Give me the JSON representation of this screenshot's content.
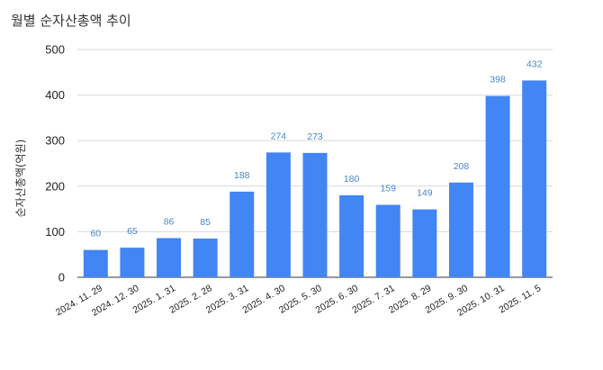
{
  "chart_data": {
    "type": "bar",
    "title": "월별 순자산총액 추이",
    "xlabel": "",
    "ylabel": "순자산총액(억원)",
    "categories": [
      "2024. 11. 29",
      "2024. 12. 30",
      "2025. 1. 31",
      "2025. 2. 28",
      "2025. 3. 31",
      "2025. 4. 30",
      "2025. 5. 30",
      "2025. 6. 30",
      "2025. 7. 31",
      "2025. 8. 29",
      "2025. 9. 30",
      "2025. 10. 31",
      "2025. 11. 5"
    ],
    "values": [
      60,
      65,
      86,
      85,
      188,
      274,
      273,
      180,
      159,
      149,
      208,
      398,
      432
    ],
    "ylim": [
      0,
      500
    ],
    "yticks": [
      0,
      100,
      200,
      300,
      400,
      500
    ],
    "grid": true,
    "bar_color": "#4285f4",
    "label_color": "#4a86c8"
  }
}
